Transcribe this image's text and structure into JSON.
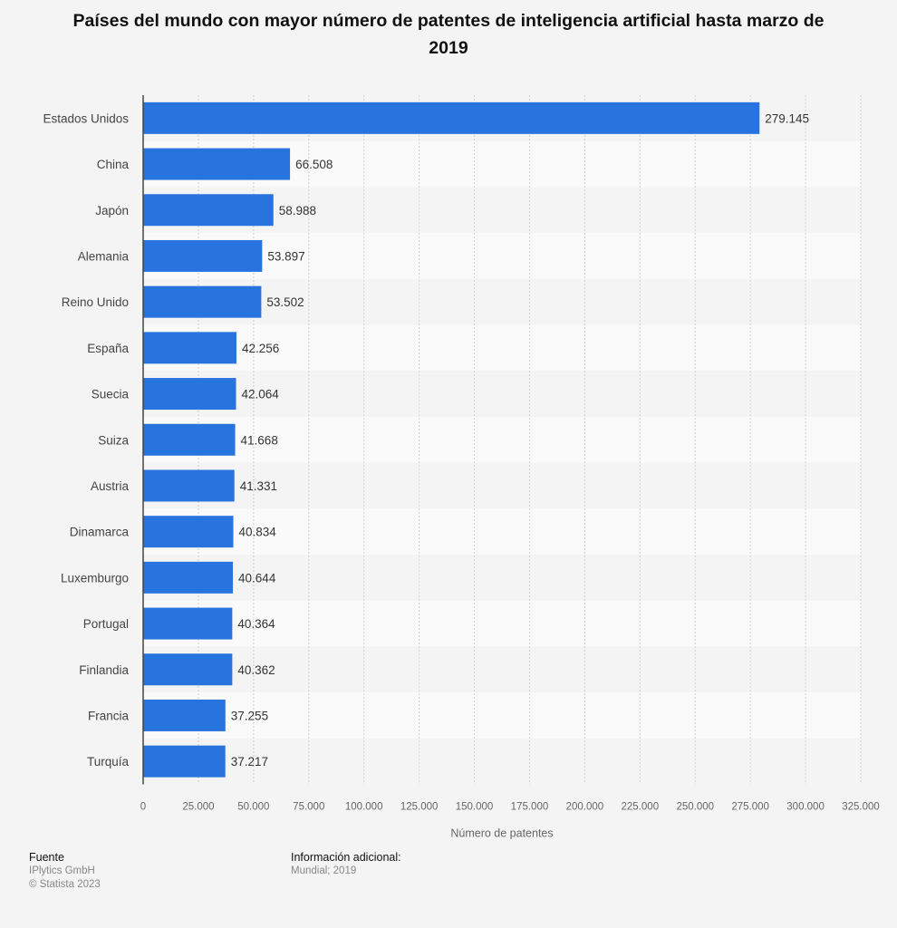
{
  "chart_data": {
    "type": "bar",
    "orientation": "horizontal",
    "title": "Países del mundo con mayor número de patentes de inteligencia artificial hasta marzo de 2019",
    "xlabel": "Número de patentes",
    "ylabel": "",
    "xlim": [
      0,
      325000
    ],
    "grid": true,
    "bar_color": "#2874df",
    "categories": [
      "Estados Unidos",
      "China",
      "Japón",
      "Alemania",
      "Reino Unido",
      "España",
      "Suecia",
      "Suiza",
      "Austria",
      "Dinamarca",
      "Luxemburgo",
      "Portugal",
      "Finlandia",
      "Francia",
      "Turquía"
    ],
    "values": [
      279145,
      66508,
      58988,
      53897,
      53502,
      42256,
      42064,
      41668,
      41331,
      40834,
      40644,
      40364,
      40362,
      37255,
      37217
    ],
    "value_labels": [
      "279.145",
      "66.508",
      "58.988",
      "53.897",
      "53.502",
      "42.256",
      "42.064",
      "41.668",
      "41.331",
      "40.834",
      "40.644",
      "40.364",
      "40.362",
      "37.255",
      "37.217"
    ],
    "tick_values": [
      0,
      25000,
      50000,
      75000,
      100000,
      125000,
      150000,
      175000,
      200000,
      225000,
      250000,
      275000,
      300000,
      325000
    ],
    "tick_labels": [
      "0",
      "25.000",
      "50.000",
      "75.000",
      "100.000",
      "125.000",
      "150.000",
      "175.000",
      "200.000",
      "225.000",
      "250.000",
      "275.000",
      "300.000",
      "325.000"
    ]
  },
  "footer": {
    "source_heading": "Fuente",
    "source_lines": [
      "IPlytics GmbH",
      "© Statista 2023"
    ],
    "info_heading": "Información adicional:",
    "info_lines": [
      "Mundial; 2019"
    ]
  }
}
